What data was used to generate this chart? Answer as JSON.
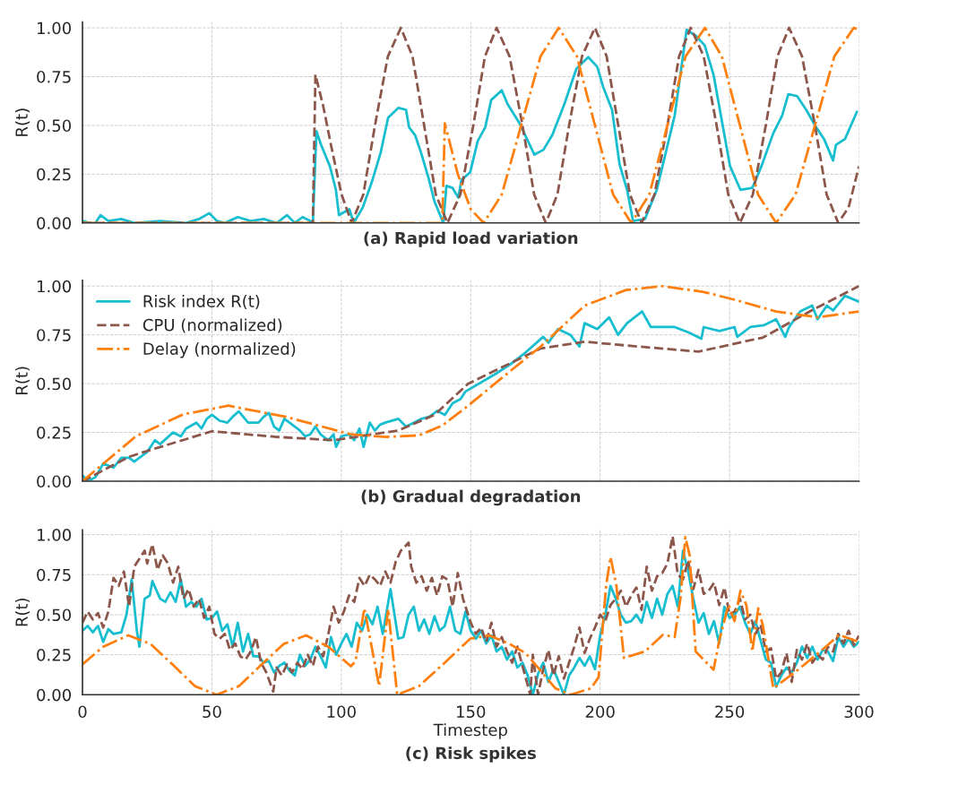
{
  "chart_data": [
    {
      "type": "line",
      "title": "(a) Rapid load variation",
      "ylabel": "R(t)",
      "xlim": [
        0,
        300
      ],
      "xticks": [
        0,
        50,
        100,
        150,
        200,
        250,
        300
      ],
      "ylim": [
        0,
        1.03
      ],
      "yticks": [
        {
          "value": 0,
          "label": "0.00"
        },
        {
          "value": 0.25,
          "label": "0.25"
        },
        {
          "value": 0.5,
          "label": "0.50"
        },
        {
          "value": 0.75,
          "label": "0.75"
        },
        {
          "value": 1,
          "label": "1.00"
        }
      ],
      "tick_labels": "y",
      "grid": true,
      "series": [
        {
          "color": "#17becf",
          "line_style": "solid",
          "x": [
            0,
            3,
            5,
            7,
            10,
            15,
            20,
            30,
            40,
            45,
            49,
            52,
            55,
            60,
            65,
            70,
            75,
            79,
            82,
            85,
            88,
            89,
            90.4,
            92.2,
            95.6,
            97.9,
            99.1,
            103.1,
            104.8,
            108.3,
            111.8,
            115.2,
            118.1,
            122.1,
            125,
            126.2,
            128.5,
            130.8,
            133.7,
            136,
            139.4,
            140.6,
            142.9,
            145.2,
            146.4,
            149.8,
            152.7,
            155.6,
            157.9,
            162,
            164.2,
            168.9,
            174.6,
            178.1,
            181.5,
            186.2,
            190.8,
            195.4,
            198.9,
            201.1,
            204.6,
            207.5,
            210.4,
            212.7,
            217.3,
            221.9,
            228.8,
            233.4,
            236.9,
            240.4,
            243.8,
            247.9,
            250.2,
            254.2,
            258.8,
            262.3,
            266.9,
            270.3,
            272.7,
            276.1,
            279.6,
            283,
            286.5,
            290,
            291.1,
            294.6,
            299.2
          ],
          "values": [
            0.01,
            0,
            0.0,
            0.04,
            0.01,
            0.02,
            0,
            0.01,
            0,
            0.02,
            0.05,
            0.01,
            0,
            0.03,
            0.01,
            0.02,
            0,
            0.04,
            0,
            0.03,
            0.01,
            0,
            0.47,
            0.4,
            0.29,
            0.17,
            0.04,
            0.07,
            0,
            0.08,
            0.21,
            0.36,
            0.54,
            0.59,
            0.58,
            0.49,
            0.45,
            0.36,
            0.23,
            0.11,
            0,
            0.19,
            0.18,
            0.13,
            0.22,
            0.26,
            0.42,
            0.49,
            0.63,
            0.68,
            0.61,
            0.51,
            0.35,
            0.375,
            0.45,
            0.61,
            0.79,
            0.85,
            0.8,
            0.7,
            0.58,
            0.3,
            0.17,
            0.01,
            0.02,
            0.17,
            0.55,
            0.99,
            0.96,
            0.91,
            0.76,
            0.46,
            0.29,
            0.17,
            0.18,
            0.29,
            0.46,
            0.55,
            0.66,
            0.65,
            0.58,
            0.5,
            0.43,
            0.32,
            0.4,
            0.43,
            0.57
          ]
        },
        {
          "color": "#8c564b",
          "line_style": "dashed",
          "x": [
            0,
            89,
            90,
            93,
            96,
            100,
            104,
            108.5,
            113,
            118,
            123,
            127.5,
            132,
            136.5,
            141,
            146,
            151,
            155.5,
            160,
            165,
            170,
            174.5,
            179,
            183.5,
            188,
            193,
            198,
            202.5,
            207,
            211.5,
            216,
            221,
            226,
            230.5,
            235,
            240,
            245,
            249.5,
            254,
            259,
            264,
            268.5,
            273,
            278,
            283,
            287.5,
            292,
            296,
            300
          ],
          "values": [
            0,
            0,
            0.76,
            0.6,
            0.4,
            0.15,
            0,
            0.146,
            0.5,
            0.854,
            1,
            0.854,
            0.5,
            0.146,
            0,
            0.146,
            0.5,
            0.854,
            1,
            0.854,
            0.5,
            0.146,
            0,
            0.146,
            0.5,
            0.854,
            1,
            0.854,
            0.5,
            0.146,
            0,
            0.146,
            0.5,
            0.854,
            1,
            0.854,
            0.5,
            0.146,
            0,
            0.146,
            0.5,
            0.854,
            1,
            0.854,
            0.5,
            0.146,
            0,
            0.08,
            0.29
          ]
        },
        {
          "color": "#ff7f0e",
          "line_style": "dashdot",
          "x": [
            0,
            139,
            140,
            145,
            150,
            155,
            162,
            169.5,
            177,
            184,
            191,
            198,
            205,
            212,
            219,
            226,
            233,
            240.5,
            247,
            254,
            261,
            268,
            275.5,
            283,
            290.5,
            298,
            300
          ],
          "values": [
            0,
            0,
            0.51,
            0.25,
            0.07,
            0,
            0.146,
            0.5,
            0.854,
            1,
            0.854,
            0.5,
            0.146,
            0,
            0.146,
            0.5,
            0.854,
            1,
            0.854,
            0.5,
            0.146,
            0,
            0.146,
            0.5,
            0.854,
            1,
            0.99
          ]
        }
      ]
    },
    {
      "type": "line",
      "title": "(b) Gradual degradation",
      "ylabel": "R(t)",
      "xlim": [
        0,
        300
      ],
      "xticks": [
        0,
        50,
        100,
        150,
        200,
        250,
        300
      ],
      "ylim": [
        0,
        1.03
      ],
      "yticks": [
        {
          "value": 0,
          "label": "0.00"
        },
        {
          "value": 0.25,
          "label": "0.25"
        },
        {
          "value": 0.5,
          "label": "0.50"
        },
        {
          "value": 0.75,
          "label": "0.75"
        },
        {
          "value": 1,
          "label": "1.00"
        }
      ],
      "tick_labels": "y",
      "grid": true,
      "legend": "top left",
      "series": [
        {
          "name": "Risk index R(t)",
          "color": "#17becf",
          "line_style": "solid",
          "x": [
            0,
            2,
            5,
            8,
            12,
            15,
            18,
            20,
            25,
            28,
            30,
            35,
            38,
            40,
            44,
            46,
            48,
            50,
            53,
            56,
            58,
            60.4,
            64,
            68,
            70,
            72,
            74,
            76,
            78,
            80,
            84,
            86,
            88,
            90,
            92,
            95,
            97,
            98,
            100,
            103,
            105,
            107,
            108.6,
            111,
            113,
            115,
            117,
            122,
            125,
            128,
            131,
            134,
            137,
            140,
            143,
            146,
            148,
            159.6,
            165.4,
            171.2,
            178,
            180,
            183.8,
            188.5,
            192,
            194,
            198.9,
            203.5,
            206.9,
            210.4,
            216.2,
            219.6,
            228.8,
            234.6,
            239.1,
            240,
            246.1,
            251.9,
            253,
            258,
            263.4,
            268,
            271.5,
            273,
            277.3,
            281.9,
            284,
            287.6,
            290,
            294.6,
            300
          ],
          "values": [
            0.03,
            0,
            0.02,
            0.09,
            0.07,
            0.12,
            0.12,
            0.1,
            0.15,
            0.21,
            0.19,
            0.25,
            0.23,
            0.27,
            0.3,
            0.27,
            0.32,
            0.34,
            0.31,
            0.3,
            0.33,
            0.358,
            0.3,
            0.3,
            0.33,
            0.35,
            0.28,
            0.26,
            0.32,
            0.3,
            0.26,
            0.23,
            0.24,
            0.28,
            0.24,
            0.21,
            0.24,
            0.176,
            0.23,
            0.24,
            0.21,
            0.27,
            0.176,
            0.3,
            0.26,
            0.29,
            0.3,
            0.32,
            0.28,
            0.3,
            0.32,
            0.33,
            0.36,
            0.34,
            0.4,
            0.42,
            0.46,
            0.55,
            0.6,
            0.66,
            0.74,
            0.71,
            0.78,
            0.75,
            0.69,
            0.81,
            0.78,
            0.84,
            0.75,
            0.81,
            0.87,
            0.79,
            0.79,
            0.76,
            0.73,
            0.79,
            0.77,
            0.79,
            0.74,
            0.79,
            0.8,
            0.83,
            0.74,
            0.79,
            0.87,
            0.9,
            0.83,
            0.9,
            0.875,
            0.95,
            0.92
          ]
        },
        {
          "name": "CPU (normalized)",
          "color": "#8c564b",
          "line_style": "dashed",
          "x": [
            0,
            18,
            25,
            50,
            75,
            97,
            122,
            136,
            149,
            163,
            177,
            194,
            215,
            238,
            263,
            281,
            300
          ],
          "values": [
            0,
            0.125,
            0.155,
            0.256,
            0.227,
            0.21,
            0.26,
            0.34,
            0.5,
            0.59,
            0.68,
            0.715,
            0.69,
            0.664,
            0.737,
            0.87,
            1.0
          ]
        },
        {
          "name": "Delay (normalized)",
          "color": "#ff7f0e",
          "line_style": "dashdot",
          "x": [
            0,
            20.6,
            39,
            56.4,
            78.6,
            103.7,
            117.5,
            130,
            139,
            149,
            163,
            177,
            194,
            210,
            224,
            240,
            252,
            268,
            284,
            300
          ],
          "values": [
            0,
            0.23,
            0.343,
            0.387,
            0.33,
            0.24,
            0.227,
            0.235,
            0.285,
            0.387,
            0.54,
            0.69,
            0.9,
            0.98,
            1.0,
            0.97,
            0.93,
            0.87,
            0.84,
            0.87
          ]
        }
      ]
    },
    {
      "type": "line",
      "title": "(c) Risk spikes",
      "xlabel": "Timestep",
      "ylabel": "R(t)",
      "xlim": [
        0,
        300
      ],
      "xticks": [
        0,
        50,
        100,
        150,
        200,
        250,
        300
      ],
      "ylim": [
        0,
        1.03
      ],
      "yticks": [
        {
          "value": 0,
          "label": "0.00"
        },
        {
          "value": 0.25,
          "label": "0.25"
        },
        {
          "value": 0.5,
          "label": "0.50"
        },
        {
          "value": 0.75,
          "label": "0.75"
        },
        {
          "value": 1,
          "label": "1.00"
        }
      ],
      "grid": true,
      "series": [
        {
          "color": "#17becf",
          "line_style": "solid",
          "x": [
            0,
            2,
            4,
            6,
            8,
            10,
            12,
            15,
            17,
            19,
            21,
            22,
            24,
            26,
            27,
            30,
            32,
            34,
            36,
            38,
            40,
            42,
            44,
            46,
            48,
            50,
            52,
            54,
            56,
            58,
            60,
            62,
            64,
            66,
            68,
            70,
            72,
            74,
            76,
            78,
            80,
            82,
            84,
            86,
            88,
            90,
            92,
            94,
            96,
            98,
            100,
            102,
            104,
            106,
            108,
            110,
            112,
            114,
            116,
            119,
            122,
            124,
            126,
            128,
            130,
            132,
            134,
            136,
            138,
            140,
            142,
            144,
            146,
            148,
            150,
            152,
            154,
            156,
            158,
            160,
            162,
            164,
            166,
            168,
            170,
            172,
            174,
            176,
            178,
            180,
            182,
            184,
            186,
            188,
            190,
            192,
            194,
            196,
            198,
            200,
            202,
            204,
            206,
            208,
            210,
            212,
            214,
            216,
            218,
            220,
            222,
            224,
            226,
            228,
            230,
            232,
            234,
            236,
            238,
            240,
            242,
            244,
            246,
            248,
            250,
            252,
            254,
            256,
            258,
            260,
            262,
            264,
            266,
            268,
            270,
            272,
            274,
            276,
            278,
            280,
            282,
            284,
            286,
            288,
            290,
            292,
            294,
            296,
            298,
            300
          ],
          "values": [
            0.4,
            0.43,
            0.39,
            0.43,
            0.33,
            0.41,
            0.38,
            0.39,
            0.5,
            0.72,
            0.4,
            0.3,
            0.6,
            0.62,
            0.71,
            0.6,
            0.58,
            0.64,
            0.58,
            0.72,
            0.55,
            0.58,
            0.55,
            0.6,
            0.47,
            0.48,
            0.52,
            0.4,
            0.44,
            0.3,
            0.45,
            0.27,
            0.38,
            0.24,
            0.24,
            0.2,
            0.21,
            0.14,
            0.18,
            0.2,
            0.15,
            0.12,
            0.25,
            0.18,
            0.22,
            0.3,
            0.24,
            0.17,
            0.36,
            0.25,
            0.32,
            0.38,
            0.3,
            0.45,
            0.4,
            0.5,
            0.44,
            0.55,
            0.38,
            0.66,
            0.35,
            0.36,
            0.5,
            0.55,
            0.4,
            0.47,
            0.38,
            0.49,
            0.4,
            0.43,
            0.55,
            0.4,
            0.38,
            0.52,
            0.4,
            0.35,
            0.4,
            0.32,
            0.37,
            0.27,
            0.3,
            0.22,
            0.27,
            0.17,
            0.2,
            0.12,
            0.0,
            0.13,
            0.2,
            0.08,
            0.16,
            0.08,
            0.0,
            0.12,
            0.17,
            0.23,
            0.18,
            0.24,
            0.16,
            0.37,
            0.5,
            0.68,
            0.6,
            0.5,
            0.45,
            0.46,
            0.5,
            0.45,
            0.58,
            0.48,
            0.6,
            0.5,
            0.63,
            0.68,
            0.55,
            0.9,
            0.77,
            0.6,
            0.45,
            0.51,
            0.38,
            0.46,
            0.32,
            0.55,
            0.48,
            0.5,
            0.55,
            0.45,
            0.38,
            0.46,
            0.34,
            0.22,
            0.2,
            0.05,
            0.12,
            0.17,
            0.14,
            0.2,
            0.3,
            0.23,
            0.3,
            0.22,
            0.28,
            0.27,
            0.21,
            0.36,
            0.3,
            0.35,
            0.3,
            0.33
          ]
        },
        {
          "color": "#8c564b",
          "line_style": "dashed",
          "x": [
            0,
            2,
            4,
            6,
            8,
            10,
            12,
            14,
            16,
            18,
            20,
            22,
            24,
            25,
            27,
            29,
            31,
            33,
            35,
            37,
            39,
            41,
            43,
            45,
            47,
            49,
            51,
            53,
            55,
            57,
            59,
            61,
            63,
            65,
            67,
            69,
            71,
            73.7,
            75,
            77,
            79,
            81,
            83,
            85,
            87,
            89,
            91,
            93,
            95,
            97,
            99,
            101,
            103,
            105,
            107,
            109,
            111,
            113,
            115,
            117,
            119,
            121,
            123,
            126,
            127,
            129,
            131,
            133,
            135,
            137,
            139,
            141,
            143,
            145,
            147,
            150,
            152,
            154,
            156,
            158,
            160,
            162,
            164,
            166,
            168,
            170,
            173,
            174,
            176,
            178,
            180,
            182,
            184,
            186,
            188,
            190,
            192,
            194,
            196,
            198,
            200,
            202,
            204,
            206,
            208,
            210,
            212,
            214,
            216,
            218,
            220,
            222,
            224,
            226,
            228,
            230,
            232,
            234,
            236,
            238,
            240,
            242,
            244,
            246,
            248,
            250,
            252,
            254,
            256,
            258,
            260,
            262,
            264,
            266,
            268,
            270,
            272,
            274,
            276,
            278,
            280,
            282,
            284,
            286,
            288,
            290,
            292,
            294,
            296,
            298,
            300
          ],
          "values": [
            0.45,
            0.52,
            0.47,
            0.51,
            0.42,
            0.52,
            0.73,
            0.68,
            0.77,
            0.55,
            0.8,
            0.85,
            0.9,
            0.82,
            0.94,
            0.78,
            0.87,
            0.82,
            0.7,
            0.8,
            0.6,
            0.66,
            0.55,
            0.6,
            0.48,
            0.55,
            0.38,
            0.35,
            0.38,
            0.28,
            0.32,
            0.24,
            0.22,
            0.27,
            0.36,
            0.2,
            0.14,
            0.02,
            0.17,
            0.12,
            0.19,
            0.14,
            0.2,
            0.16,
            0.25,
            0.18,
            0.3,
            0.24,
            0.38,
            0.55,
            0.45,
            0.52,
            0.62,
            0.58,
            0.73,
            0.68,
            0.75,
            0.72,
            0.68,
            0.77,
            0.7,
            0.83,
            0.9,
            0.95,
            0.8,
            0.7,
            0.74,
            0.65,
            0.73,
            0.62,
            0.74,
            0.72,
            0.55,
            0.76,
            0.6,
            0.45,
            0.38,
            0.42,
            0.33,
            0.45,
            0.3,
            0.36,
            0.27,
            0.2,
            0.3,
            0.18,
            0.0,
            0.25,
            0.0,
            0.16,
            0.28,
            0.12,
            0.24,
            0.1,
            0.2,
            0.3,
            0.42,
            0.26,
            0.35,
            0.42,
            0.5,
            0.46,
            0.56,
            0.6,
            0.65,
            0.55,
            0.62,
            0.67,
            0.53,
            0.8,
            0.65,
            0.74,
            0.76,
            0.82,
            0.99,
            0.75,
            0.72,
            0.84,
            0.66,
            0.78,
            0.63,
            0.65,
            0.7,
            0.56,
            0.67,
            0.5,
            0.52,
            0.6,
            0.47,
            0.5,
            0.38,
            0.44,
            0.27,
            0.29,
            0.1,
            0.14,
            0.26,
            0.08,
            0.28,
            0.22,
            0.32,
            0.2,
            0.25,
            0.22,
            0.3,
            0.27,
            0.38,
            0.32,
            0.4,
            0.31,
            0.37
          ]
        },
        {
          "color": "#ff7f0e",
          "line_style": "dashdot",
          "x": [
            0,
            8,
            17.7,
            26.3,
            35,
            43.4,
            51.8,
            60.5,
            69,
            77.7,
            86.4,
            95,
            103.7,
            105.5,
            108.9,
            114.6,
            118.1,
            121.6,
            130,
            139,
            149.8,
            157.3,
            165,
            171.2,
            177,
            182.7,
            188.5,
            196.5,
            199.4,
            202.3,
            204,
            206.3,
            209.2,
            217.3,
            224.2,
            228.8,
            231.1,
            232.9,
            234.6,
            236.9,
            243.8,
            246.1,
            249.6,
            251.9,
            254.2,
            256.5,
            258.8,
            261.1,
            262.9,
            266.9,
            276,
            286.5,
            292.3,
            300
          ],
          "values": [
            0.19,
            0.3,
            0.371,
            0.317,
            0.186,
            0.054,
            0,
            0.054,
            0.186,
            0.317,
            0.371,
            0.3,
            0.178,
            0.21,
            0.54,
            0.054,
            0.534,
            0,
            0.054,
            0.186,
            0.35,
            0.37,
            0.317,
            0.26,
            0.15,
            0.04,
            0,
            0.04,
            0.11,
            0.68,
            0.86,
            0.68,
            0.23,
            0.27,
            0.374,
            0.36,
            0.61,
            0.985,
            0.87,
            0.27,
            0.156,
            0.345,
            0.563,
            0.46,
            0.65,
            0.56,
            0.27,
            0.54,
            0.43,
            0.04,
            0.15,
            0.29,
            0.374,
            0.33
          ]
        }
      ]
    }
  ]
}
